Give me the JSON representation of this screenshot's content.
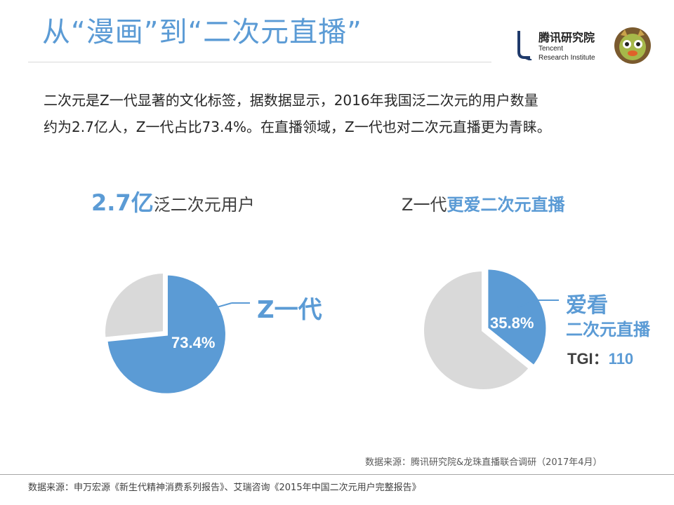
{
  "title": "从“漫画”到“二次元直播”",
  "logo": {
    "cn": "腾讯研究院",
    "en_line1": "Tencent",
    "en_line2": "Research Institute"
  },
  "intro": {
    "line1": "二次元是Z一代显著的文化标签，据数据显示，2016年我国泛二次元的用户数量",
    "line2": "约为2.7亿人，Z一代占比73.4%。在直播领域，Z一代也对二次元直播更为青睐。"
  },
  "colors": {
    "accent": "#5b9bd5",
    "grey_slice": "#d9d9d9",
    "text": "#262626"
  },
  "left_chart": {
    "heading_number": "2.7亿",
    "heading_text": "泛二次元用户",
    "callout": "Z一代",
    "pct_label": "73.4%"
  },
  "right_chart": {
    "heading_prefix": "Z一代",
    "heading_highlight": "更爱二次元直播",
    "callout_line1": "爱看",
    "callout_line2": "二次元直播",
    "pct_label": "35.8%",
    "tgi_label": "TGI：",
    "tgi_value": "110"
  },
  "chart_data": [
    {
      "type": "pie",
      "title": "2.7亿泛二次元用户",
      "slices": [
        {
          "label": "Z一代",
          "value": 73.4,
          "color": "#5b9bd5"
        },
        {
          "label": "",
          "value": 26.6,
          "color": "#d9d9d9"
        }
      ]
    },
    {
      "type": "pie",
      "title": "Z一代更爱二次元直播",
      "slices": [
        {
          "label": "爱看二次元直播",
          "value": 35.8,
          "color": "#5b9bd5"
        },
        {
          "label": "",
          "value": 64.2,
          "color": "#d9d9d9"
        }
      ],
      "annotations": [
        "TGI：110"
      ]
    }
  ],
  "sources": {
    "right": "数据来源：腾讯研究院&龙珠直播联合调研（2017年4月）",
    "bottom": "数据来源：申万宏源《新生代精神消费系列报告》、艾瑞咨询《2015年中国二次元用户完整报告》"
  }
}
